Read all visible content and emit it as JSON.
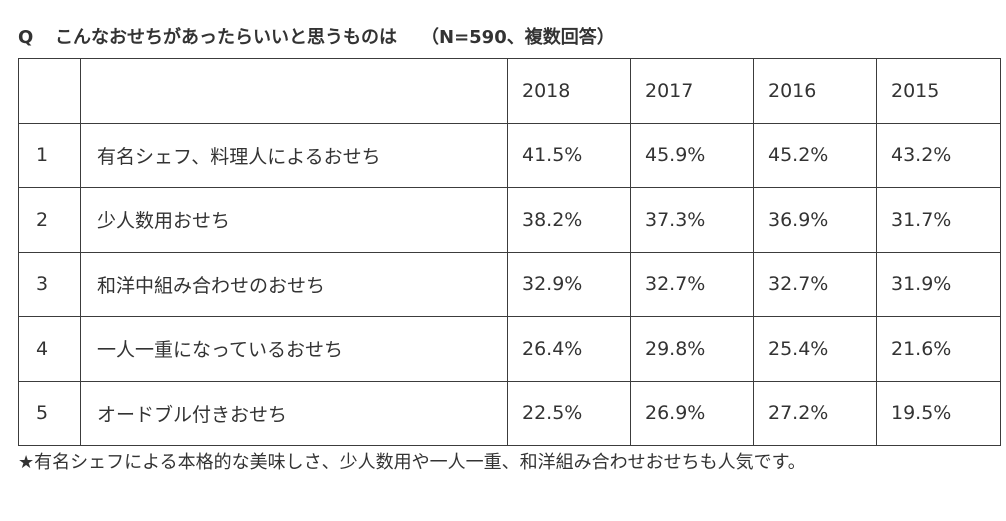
{
  "header": {
    "q_label": "Q",
    "question": "こんなおせちがあったらいいと思うものは",
    "note": "（N=590、複数回答）"
  },
  "chart_data": {
    "type": "table",
    "columns": [
      "2018",
      "2017",
      "2016",
      "2015"
    ],
    "unit": "%",
    "rows": [
      {
        "rank": "1",
        "label": "有名シェフ、料理人によるおせち",
        "values": [
          41.5,
          45.9,
          45.2,
          43.2
        ]
      },
      {
        "rank": "2",
        "label": "少人数用おせち",
        "values": [
          38.2,
          37.3,
          36.9,
          31.7
        ]
      },
      {
        "rank": "3",
        "label": "和洋中組み合わせのおせち",
        "values": [
          32.9,
          32.7,
          32.7,
          31.9
        ]
      },
      {
        "rank": "4",
        "label": "一人一重になっているおせち",
        "values": [
          26.4,
          29.8,
          25.4,
          21.6
        ]
      },
      {
        "rank": "5",
        "label": "オードブル付きおせち",
        "values": [
          22.5,
          26.9,
          27.2,
          19.5
        ]
      }
    ]
  },
  "footnote": "★有名シェフによる本格的な美味しさ、少人数用や一人一重、和洋組み合わせおせちも人気です。",
  "colors": {
    "text": "#333333",
    "border": "#3c3c3c",
    "background": "#ffffff"
  }
}
